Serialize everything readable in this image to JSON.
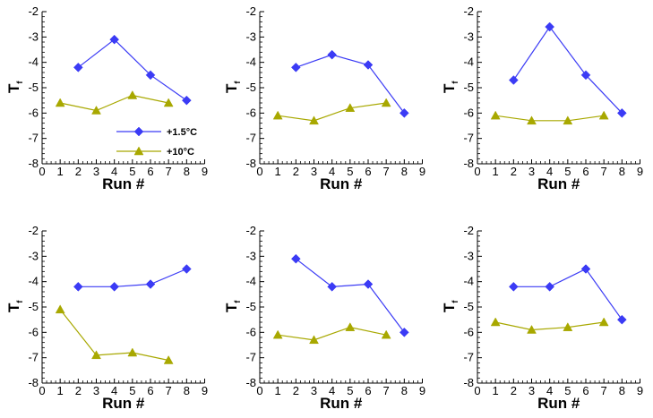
{
  "figure": {
    "xlabel": "Run #",
    "ylabel": "T",
    "ylabel_sub": "f"
  },
  "legend": {
    "placement": "inside lower-right of first panel",
    "entries": [
      {
        "label": "+1.5°C",
        "color": "#3b3bf5",
        "marker": "diamond"
      },
      {
        "label": "+10°C",
        "color": "#a8a800",
        "marker": "triangle"
      }
    ]
  },
  "colors": {
    "series_a": "#3b3bf5",
    "series_b": "#a8a800",
    "axis": "#000000"
  },
  "chart_data": [
    {
      "type": "line",
      "xlim": [
        0,
        9
      ],
      "ylim": [
        -8,
        -2
      ],
      "xticks": [
        "0",
        "1",
        "2",
        "3",
        "4",
        "5",
        "6",
        "7",
        "8",
        "9"
      ],
      "yticks": [
        "-8",
        "-7",
        "-6",
        "-5",
        "-4",
        "-3",
        "-2"
      ],
      "xlabel": "Run #",
      "ylabel": "Tf",
      "legend": true,
      "series": [
        {
          "name": "+1.5°C",
          "x": [
            2,
            4,
            6,
            8
          ],
          "y": [
            -4.2,
            -3.1,
            -4.5,
            -5.5
          ]
        },
        {
          "name": "+10°C",
          "x": [
            1,
            3,
            5,
            7
          ],
          "y": [
            -5.6,
            -5.9,
            -5.3,
            -5.6
          ]
        }
      ]
    },
    {
      "type": "line",
      "xlim": [
        0,
        9
      ],
      "ylim": [
        -8,
        -2
      ],
      "xticks": [
        "0",
        "1",
        "2",
        "3",
        "4",
        "5",
        "6",
        "7",
        "8",
        "9"
      ],
      "yticks": [
        "-8",
        "-7",
        "-6",
        "-5",
        "-4",
        "-3",
        "-2"
      ],
      "xlabel": "Run #",
      "ylabel": "Tf",
      "legend": false,
      "series": [
        {
          "name": "+1.5°C",
          "x": [
            2,
            4,
            6,
            8
          ],
          "y": [
            -4.2,
            -3.7,
            -4.1,
            -6.0
          ]
        },
        {
          "name": "+10°C",
          "x": [
            1,
            3,
            5,
            7
          ],
          "y": [
            -6.1,
            -6.3,
            -5.8,
            -5.6
          ]
        }
      ]
    },
    {
      "type": "line",
      "xlim": [
        0,
        9
      ],
      "ylim": [
        -8,
        -2
      ],
      "xticks": [
        "0",
        "1",
        "2",
        "3",
        "4",
        "5",
        "6",
        "7",
        "8",
        "9"
      ],
      "yticks": [
        "-8",
        "-7",
        "-6",
        "-5",
        "-4",
        "-3",
        "-2"
      ],
      "xlabel": "Run #",
      "ylabel": "Tf",
      "legend": false,
      "series": [
        {
          "name": "+1.5°C",
          "x": [
            2,
            4,
            6,
            8
          ],
          "y": [
            -4.7,
            -2.6,
            -4.5,
            -6.0
          ]
        },
        {
          "name": "+10°C",
          "x": [
            1,
            3,
            5,
            7
          ],
          "y": [
            -6.1,
            -6.3,
            -6.3,
            -6.1
          ]
        }
      ]
    },
    {
      "type": "line",
      "xlim": [
        0,
        9
      ],
      "ylim": [
        -8,
        -2
      ],
      "xticks": [
        "0",
        "1",
        "2",
        "3",
        "4",
        "5",
        "6",
        "7",
        "8",
        "9"
      ],
      "yticks": [
        "-8",
        "-7",
        "-6",
        "-5",
        "-4",
        "-3",
        "-2"
      ],
      "xlabel": "Run #",
      "ylabel": "Tf",
      "legend": false,
      "series": [
        {
          "name": "+1.5°C",
          "x": [
            2,
            4,
            6,
            8
          ],
          "y": [
            -4.2,
            -4.2,
            -4.1,
            -3.5
          ]
        },
        {
          "name": "+10°C",
          "x": [
            1,
            3,
            5,
            7
          ],
          "y": [
            -5.1,
            -6.9,
            -6.8,
            -7.1
          ]
        }
      ]
    },
    {
      "type": "line",
      "xlim": [
        0,
        9
      ],
      "ylim": [
        -8,
        -2
      ],
      "xticks": [
        "0",
        "1",
        "2",
        "3",
        "4",
        "5",
        "6",
        "7",
        "8",
        "9"
      ],
      "yticks": [
        "-8",
        "-7",
        "-6",
        "-5",
        "-4",
        "-3",
        "-2"
      ],
      "xlabel": "Run #",
      "ylabel": "Tf",
      "legend": false,
      "series": [
        {
          "name": "+1.5°C",
          "x": [
            2,
            4,
            6,
            8
          ],
          "y": [
            -3.1,
            -4.2,
            -4.1,
            -6.0
          ]
        },
        {
          "name": "+10°C",
          "x": [
            1,
            3,
            5,
            7
          ],
          "y": [
            -6.1,
            -6.3,
            -5.8,
            -6.1
          ]
        }
      ]
    },
    {
      "type": "line",
      "xlim": [
        0,
        9
      ],
      "ylim": [
        -8,
        -2
      ],
      "xticks": [
        "0",
        "1",
        "2",
        "3",
        "4",
        "5",
        "6",
        "7",
        "8",
        "9"
      ],
      "yticks": [
        "-8",
        "-7",
        "-6",
        "-5",
        "-4",
        "-3",
        "-2"
      ],
      "xlabel": "Run #",
      "ylabel": "Tf",
      "legend": false,
      "series": [
        {
          "name": "+1.5°C",
          "x": [
            2,
            4,
            6,
            8
          ],
          "y": [
            -4.2,
            -4.2,
            -3.5,
            -5.5
          ]
        },
        {
          "name": "+10°C",
          "x": [
            1,
            3,
            5,
            7
          ],
          "y": [
            -5.6,
            -5.9,
            -5.8,
            -5.6
          ]
        }
      ]
    }
  ]
}
